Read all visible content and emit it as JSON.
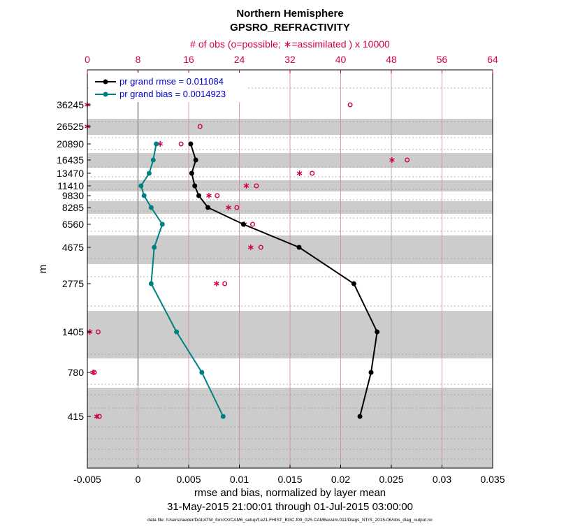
{
  "chart_data": {
    "type": "line",
    "title": "Northern Hemisphere",
    "subtitle": "GPSRO_REFRACTIVITY",
    "xlabel": "rmse and bias, normalized by layer mean",
    "ylabel": "m",
    "date_range": "31-May-2015 21:00:01 through 01-Jul-2015 03:00:00",
    "data_file": "data file: /Users/raeder/DAI/ATM_forcXX/CAM6_setup/f.e21.FHIST_BGC.f09_025.CAM6assim.011/Diags_NTrS_2015-06/obs_diag_output.nc",
    "xlim": [
      -0.005,
      0.035
    ],
    "x_ticks": [
      "-0.005",
      "0",
      "0.005",
      "0.01",
      "0.015",
      "0.02",
      "0.025",
      "0.03",
      "0.035"
    ],
    "top_axis": {
      "label": "# of obs (o=possible; ∗=assimilated ) x 10000",
      "range": [
        0,
        64
      ],
      "ticks": [
        "0",
        "8",
        "16",
        "24",
        "32",
        "40",
        "48",
        "56",
        "64"
      ]
    },
    "levels": [
      "36245",
      "26525",
      "20890",
      "16435",
      "13470",
      "11410",
      "9830",
      "8285",
      "6560",
      "4675",
      "2775",
      "1405",
      "780",
      "415"
    ],
    "legend": {
      "placement": "top-left"
    },
    "series": [
      {
        "name": "pr grand rmse = 0.011084",
        "color": "#000000",
        "values": [
          null,
          null,
          0.0052,
          0.0057,
          0.0053,
          0.0056,
          0.006,
          0.0069,
          0.0104,
          0.0159,
          0.0213,
          0.0236,
          0.023,
          0.0219
        ]
      },
      {
        "name": "pr grand bias = 0.0014923",
        "color": "#008080",
        "values": [
          null,
          null,
          0.0018,
          0.0015,
          0.0011,
          0.0003,
          0.0006,
          0.0013,
          0.0024,
          0.0016,
          0.0013,
          0.0038,
          0.0063,
          0.0084
        ]
      }
    ],
    "obs_possible": [
      41.5,
      17.8,
      14.8,
      50.5,
      35.5,
      26.7,
      20.5,
      23.6,
      26.1,
      27.4,
      21.7,
      1.7,
      1.1,
      1.9
    ],
    "obs_assimilated": [
      0,
      0,
      11.5,
      48.1,
      33.5,
      25.1,
      19.2,
      22.3,
      24.8,
      25.8,
      20.4,
      0.4,
      0.9,
      1.5
    ]
  }
}
